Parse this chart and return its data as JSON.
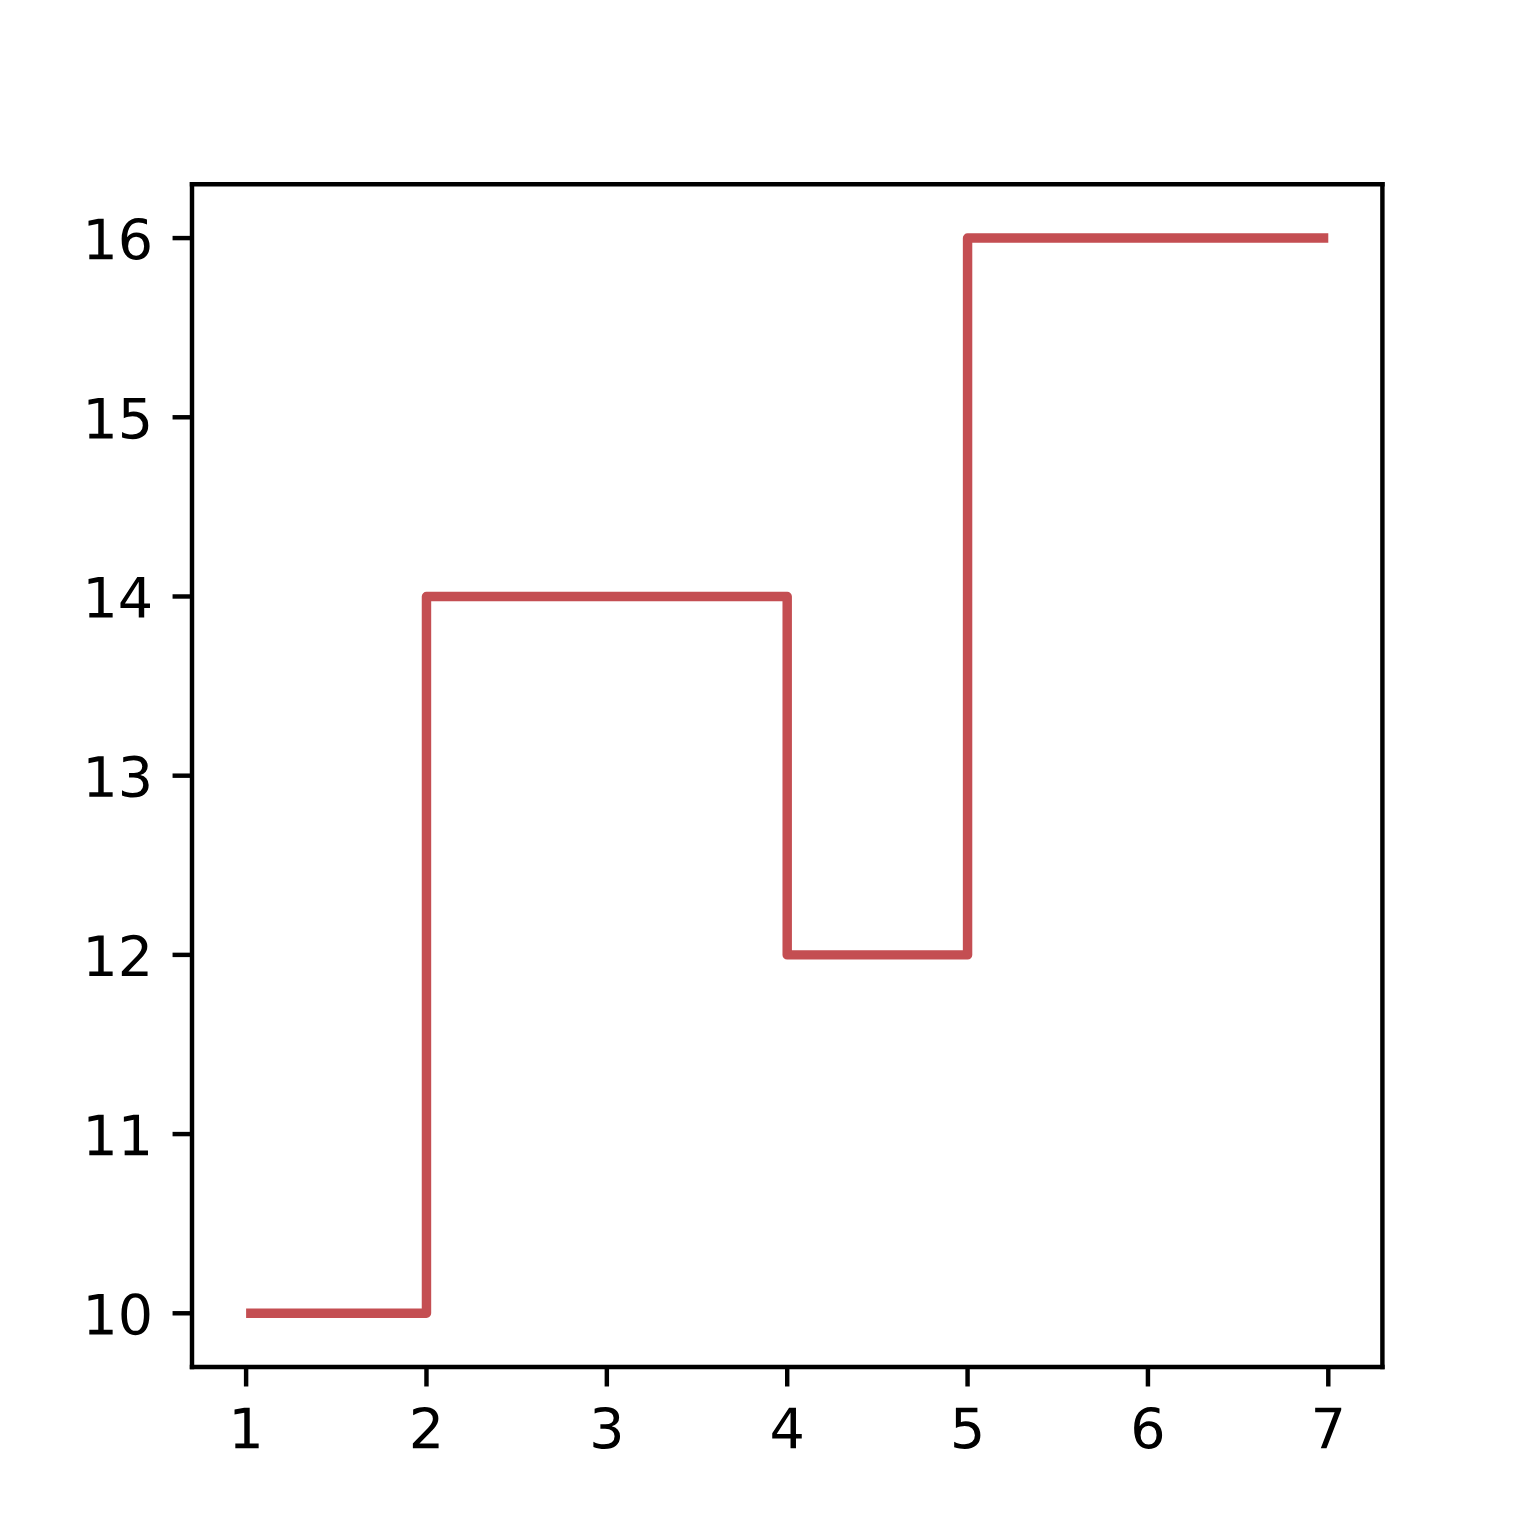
{
  "chart_data": {
    "type": "step",
    "x": [
      1,
      2,
      3,
      4,
      5,
      6,
      7
    ],
    "series": [
      {
        "color": "#c44e52",
        "values": [
          10,
          14,
          14,
          12,
          16,
          16,
          16
        ]
      }
    ],
    "xlim": [
      0.7,
      7.3
    ],
    "ylim": [
      9.7,
      16.3
    ],
    "xticks": [
      1,
      2,
      3,
      4,
      5,
      6,
      7
    ],
    "yticks": [
      10,
      11,
      12,
      13,
      14,
      15,
      16
    ],
    "line_style": "solid",
    "marker": "none"
  }
}
